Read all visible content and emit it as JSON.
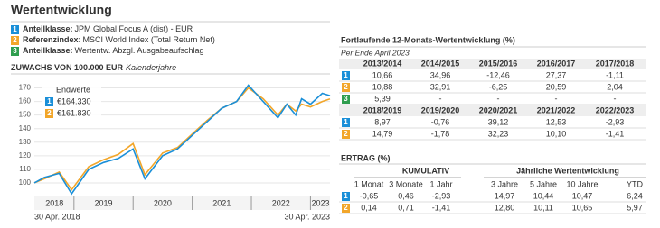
{
  "title": "Wertentwicklung",
  "legend": [
    {
      "badge": "1",
      "color": "#1a8fd8",
      "label": "Anteilklasse:",
      "text": "JPM Global Focus A (dist) - EUR"
    },
    {
      "badge": "2",
      "color": "#f2a62a",
      "label": "Referenzindex:",
      "text": "MSCI World Index (Total Return Net)"
    },
    {
      "badge": "3",
      "color": "#2f9e4f",
      "label": "Anteilklasse:",
      "text": "Wertentw. Abzgl. Ausgabeaufschlag"
    }
  ],
  "chart_data": {
    "type": "line",
    "title": "ZUWACHS VON 100.000 EUR",
    "subtitle": "Kalenderjahre",
    "x": [
      2018.33,
      2018.5,
      2018.75,
      2018.96,
      2019.25,
      2019.5,
      2019.75,
      2020.0,
      2020.2,
      2020.5,
      2020.75,
      2021.0,
      2021.25,
      2021.5,
      2021.75,
      2021.95,
      2022.2,
      2022.45,
      2022.6,
      2022.75,
      2022.85,
      2023.0,
      2023.2,
      2023.33
    ],
    "series": [
      {
        "name": "1",
        "color": "#1a8fd8",
        "values": [
          100,
          104,
          107,
          92,
          110,
          115,
          118,
          125,
          103,
          120,
          125,
          135,
          145,
          155,
          160,
          172,
          160,
          148,
          158,
          150,
          162,
          158,
          166,
          164.33
        ],
        "end_value_label": "€164.330"
      },
      {
        "name": "2",
        "color": "#f2a62a",
        "values": [
          100,
          103,
          108,
          95,
          112,
          117,
          121,
          129,
          106,
          122,
          126,
          136,
          146,
          155,
          160,
          170,
          162,
          150,
          158,
          153,
          158,
          156,
          160,
          161.83
        ],
        "end_value_label": "€161.830"
      }
    ],
    "end_title": "Endwerte",
    "xlim": [
      2018.33,
      2023.33
    ],
    "ylim": [
      90,
      173
    ],
    "yticks": [
      100,
      110,
      120,
      130,
      140,
      150,
      160,
      170
    ],
    "xticks": [
      {
        "value": 2018.67,
        "label": "2018"
      },
      {
        "value": 2019.5,
        "label": "2019"
      },
      {
        "value": 2020.5,
        "label": "2020"
      },
      {
        "value": 2021.5,
        "label": "2021"
      },
      {
        "value": 2022.5,
        "label": "2022"
      },
      {
        "value": 2023.17,
        "label": "2023"
      }
    ],
    "year_separators": [
      2019,
      2020,
      2021,
      2022,
      2023
    ],
    "start_label": "30 Apr. 2018",
    "end_label": "30 Apr. 2023",
    "grid": true
  },
  "rolling": {
    "title": "Fortlaufende 12-Monats-Wertentwicklung (%)",
    "subtitle": "Per Ende April 2023",
    "blocks": [
      {
        "header": [
          "2013/2014",
          "2014/2015",
          "2015/2016",
          "2016/2017",
          "2017/2018"
        ],
        "rows": [
          {
            "badge": "1",
            "cells": [
              "10,66",
              "34,96",
              "-12,46",
              "27,37",
              "-1,11"
            ]
          },
          {
            "badge": "2",
            "cells": [
              "10,88",
              "32,91",
              "-6,25",
              "20,59",
              "2,04"
            ]
          },
          {
            "badge": "3",
            "cells": [
              "5,39",
              "-",
              "-",
              "-",
              "-"
            ]
          }
        ]
      },
      {
        "header": [
          "2018/2019",
          "2019/2020",
          "2020/2021",
          "2021/2022",
          "2022/2023"
        ],
        "rows": [
          {
            "badge": "1",
            "cells": [
              "8,97",
              "-0,76",
              "39,12",
              "12,53",
              "-2,93"
            ]
          },
          {
            "badge": "2",
            "cells": [
              "14,79",
              "-1,78",
              "32,23",
              "10,10",
              "-1,41"
            ]
          }
        ]
      }
    ]
  },
  "ertrag": {
    "title": "ERTRAG (%)",
    "group_headers": [
      "KUMULATIV",
      "Jährliche Wertentwicklung"
    ],
    "header": [
      "1 Monat",
      "3 Monate",
      "1 Jahr",
      "3 Jahre",
      "5 Jahre",
      "10 Jahre",
      "YTD"
    ],
    "rows": [
      {
        "badge": "1",
        "cells": [
          "-0,65",
          "0,46",
          "-2,93",
          "14,97",
          "10,44",
          "10,47",
          "6,24"
        ]
      },
      {
        "badge": "2",
        "cells": [
          "0,14",
          "0,71",
          "-1,41",
          "12,80",
          "10,11",
          "10,65",
          "5,97"
        ]
      }
    ]
  }
}
